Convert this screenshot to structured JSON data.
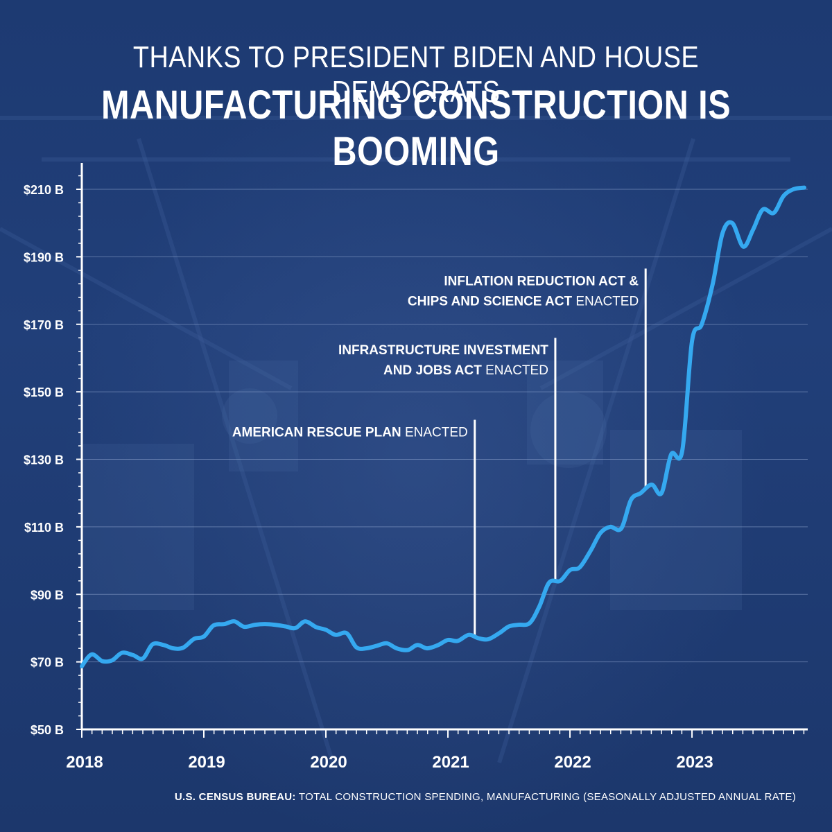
{
  "title": {
    "line1": "THANKS TO PRESIDENT BIDEN AND HOUSE DEMOCRATS",
    "line2": "MANUFACTURING CONSTRUCTION IS BOOMING"
  },
  "source": {
    "bold": "U.S. CENSUS BUREAU:",
    "text": " TOTAL CONSTRUCTION SPENDING, MANUFACTURING (SEASONALLY ADJUSTED ANNUAL RATE)"
  },
  "colors": {
    "background": "#1f3c75",
    "line": "#35a9f0",
    "text": "#ffffff",
    "gridline": "#8fa6cf"
  },
  "chart_data": {
    "type": "line",
    "title": "MANUFACTURING CONSTRUCTION IS BOOMING",
    "xlabel": "",
    "ylabel": "",
    "xlim": [
      2018.0,
      2023.92
    ],
    "ylim": [
      50,
      220
    ],
    "grid": true,
    "y_ticks": [
      {
        "value": 50,
        "label": "$50 B"
      },
      {
        "value": 70,
        "label": "$70 B"
      },
      {
        "value": 90,
        "label": "$90 B"
      },
      {
        "value": 110,
        "label": "$110 B"
      },
      {
        "value": 130,
        "label": "$130 B"
      },
      {
        "value": 150,
        "label": "$150 B"
      },
      {
        "value": 170,
        "label": "$170 B"
      },
      {
        "value": 190,
        "label": "$190 B"
      },
      {
        "value": 210,
        "label": "$210 B"
      }
    ],
    "x_ticks": [
      {
        "value": 2018,
        "label": "2018"
      },
      {
        "value": 2019,
        "label": "2019"
      },
      {
        "value": 2020,
        "label": "2020"
      },
      {
        "value": 2021,
        "label": "2021"
      },
      {
        "value": 2022,
        "label": "2022"
      },
      {
        "value": 2023,
        "label": "2023"
      }
    ],
    "series": [
      {
        "name": "Total Construction Spending, Manufacturing (SAAR, $B)",
        "x": [
          2018.0,
          2018.08,
          2018.17,
          2018.25,
          2018.33,
          2018.42,
          2018.5,
          2018.58,
          2018.67,
          2018.75,
          2018.83,
          2018.92,
          2019.0,
          2019.08,
          2019.17,
          2019.25,
          2019.33,
          2019.42,
          2019.5,
          2019.58,
          2019.67,
          2019.75,
          2019.83,
          2019.92,
          2020.0,
          2020.08,
          2020.17,
          2020.25,
          2020.33,
          2020.42,
          2020.5,
          2020.58,
          2020.67,
          2020.75,
          2020.83,
          2020.92,
          2021.0,
          2021.08,
          2021.17,
          2021.25,
          2021.33,
          2021.42,
          2021.5,
          2021.58,
          2021.67,
          2021.75,
          2021.83,
          2021.92,
          2022.0,
          2022.08,
          2022.17,
          2022.25,
          2022.33,
          2022.42,
          2022.5,
          2022.58,
          2022.67,
          2022.75,
          2022.83,
          2022.92,
          2023.0,
          2023.08,
          2023.17,
          2023.25,
          2023.33,
          2023.42,
          2023.5,
          2023.58,
          2023.67,
          2023.75,
          2023.83,
          2023.92
        ],
        "values": [
          68.7,
          72.2,
          70.2,
          70.5,
          72.7,
          72.0,
          71.0,
          75.2,
          75.0,
          74.0,
          74.2,
          76.8,
          77.5,
          80.8,
          81.2,
          82.0,
          80.4,
          81.0,
          81.2,
          81.0,
          80.5,
          80.0,
          82.0,
          80.3,
          79.5,
          78.0,
          78.5,
          74.3,
          74.0,
          74.8,
          75.5,
          74.0,
          73.5,
          75.0,
          74.0,
          75.0,
          76.5,
          76.2,
          78.0,
          77.0,
          76.7,
          78.5,
          80.5,
          81.0,
          81.5,
          86.5,
          93.5,
          94.0,
          97.2,
          98.0,
          103.0,
          108.2,
          110.0,
          109.5,
          118.0,
          120.0,
          122.5,
          120.0,
          131.5,
          132.5,
          165.0,
          170.0,
          182.0,
          197.0,
          200.0,
          193.0,
          198.0,
          204.0,
          203.0,
          208.0,
          210.0,
          210.5
        ]
      }
    ],
    "annotations": [
      {
        "x": 2021.22,
        "line_top_value": 141.7,
        "lines": [
          {
            "bold": "AMERICAN RESCUE PLAN",
            "normal": " ENACTED"
          }
        ]
      },
      {
        "x": 2021.88,
        "line_top_value": 166.0,
        "lines": [
          {
            "bold": "INFRASTRUCTURE INVESTMENT",
            "normal": ""
          },
          {
            "bold": "AND JOBS ACT",
            "normal": " ENACTED"
          }
        ]
      },
      {
        "x": 2022.62,
        "line_top_value": 186.5,
        "lines": [
          {
            "bold": "INFLATION REDUCTION ACT &",
            "normal": ""
          },
          {
            "bold": "CHIPS AND SCIENCE ACT",
            "normal": " ENACTED"
          }
        ]
      }
    ]
  }
}
